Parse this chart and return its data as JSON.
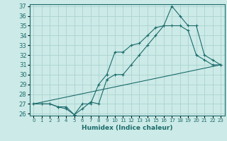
{
  "title": "",
  "xlabel": "Humidex (Indice chaleur)",
  "bg_color": "#cceae7",
  "grid_color": "#aad4d0",
  "line_color": "#1a6b6b",
  "xlim": [
    -0.5,
    23.5
  ],
  "ylim": [
    25.8,
    37.2
  ],
  "yticks": [
    26,
    27,
    28,
    29,
    30,
    31,
    32,
    33,
    34,
    35,
    36,
    37
  ],
  "xticks": [
    0,
    1,
    2,
    3,
    4,
    5,
    6,
    7,
    8,
    9,
    10,
    11,
    12,
    13,
    14,
    15,
    16,
    17,
    18,
    19,
    20,
    21,
    22,
    23
  ],
  "line1_x": [
    0,
    1,
    2,
    3,
    4,
    5,
    6,
    7,
    8,
    9,
    10,
    11,
    12,
    13,
    14,
    15,
    16,
    17,
    18,
    19,
    20,
    21,
    22,
    23
  ],
  "line1_y": [
    27.0,
    27.0,
    27.0,
    26.7,
    26.7,
    25.9,
    27.0,
    27.0,
    29.0,
    30.0,
    32.3,
    32.3,
    33.0,
    33.2,
    34.0,
    34.8,
    35.0,
    37.0,
    36.0,
    35.0,
    35.0,
    32.0,
    31.5,
    31.0
  ],
  "line2_x": [
    0,
    1,
    2,
    3,
    4,
    5,
    6,
    7,
    8,
    9,
    10,
    11,
    12,
    13,
    14,
    15,
    16,
    17,
    18,
    19,
    20,
    21,
    22,
    23
  ],
  "line2_y": [
    27.0,
    27.0,
    27.0,
    26.7,
    26.5,
    25.9,
    26.5,
    27.2,
    27.0,
    29.5,
    30.0,
    30.0,
    31.0,
    32.0,
    33.0,
    34.0,
    35.0,
    35.0,
    35.0,
    34.5,
    32.0,
    31.5,
    31.0,
    31.0
  ],
  "line3_x": [
    0,
    23
  ],
  "line3_y": [
    27.0,
    31.0
  ]
}
